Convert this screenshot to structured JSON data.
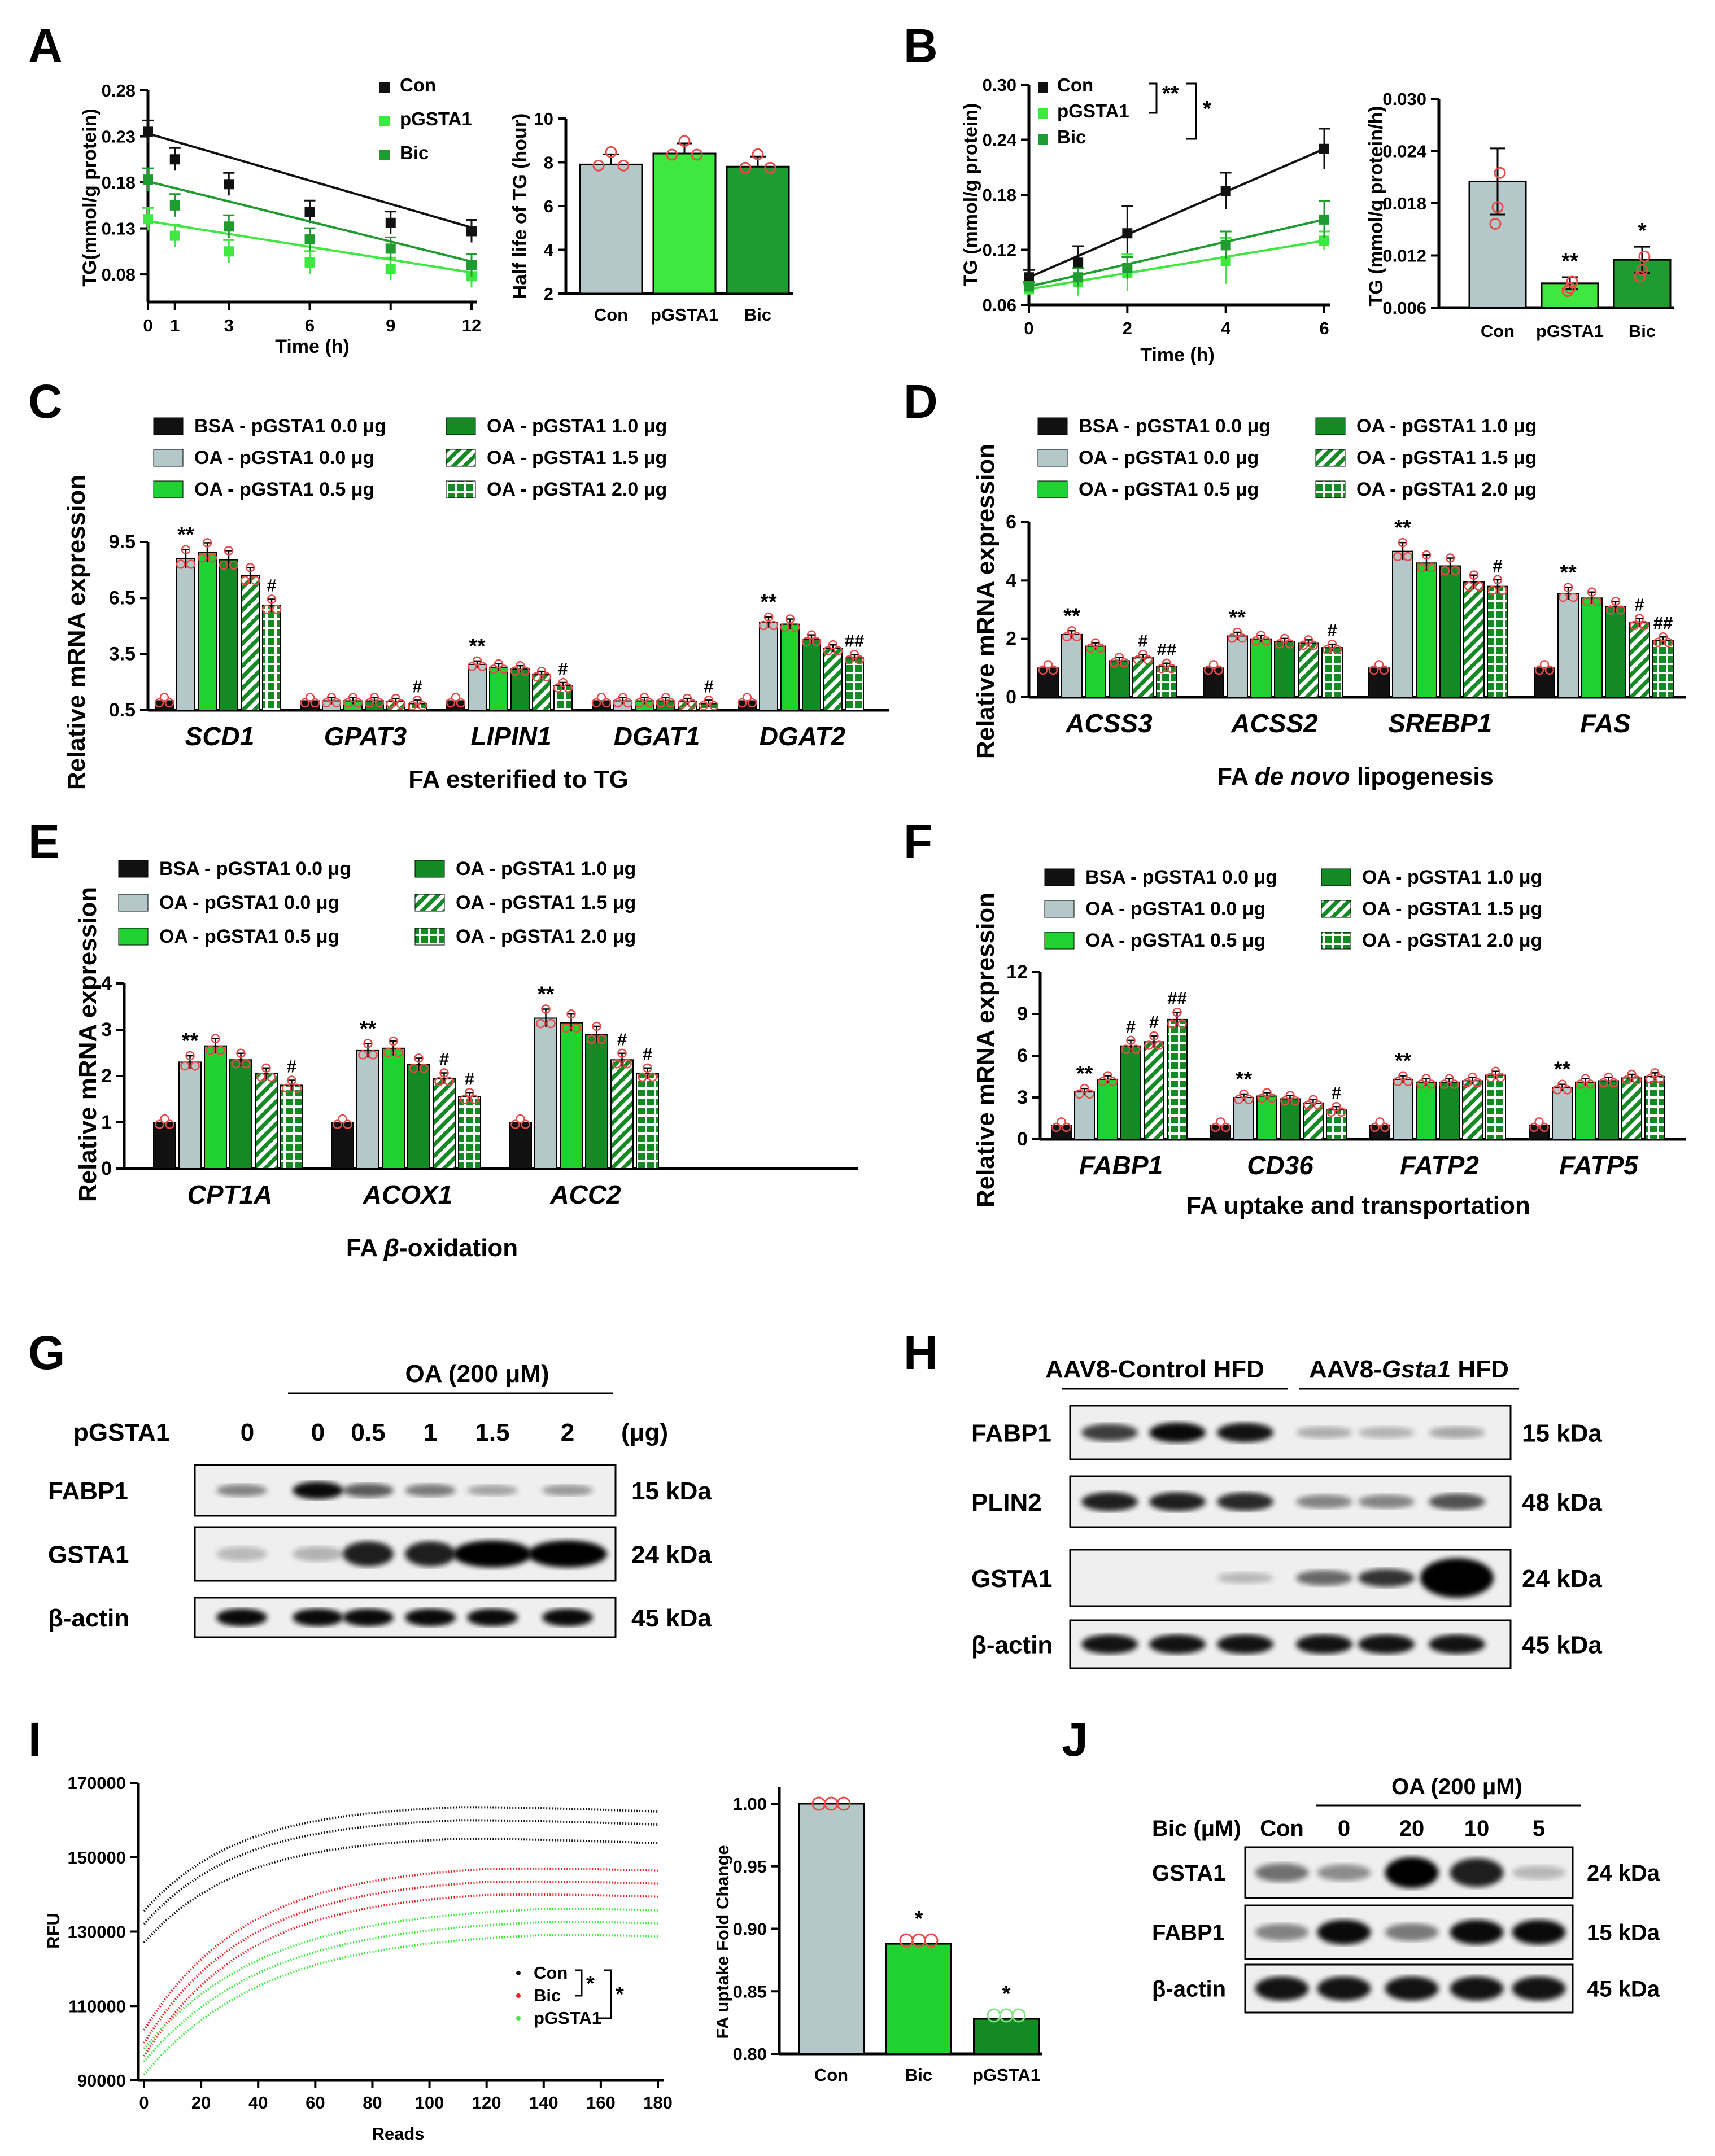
{
  "panels": {
    "A": "A",
    "B": "B",
    "C": "C",
    "D": "D",
    "E": "E",
    "F": "F",
    "G": "G",
    "H": "H",
    "I": "I",
    "J": "J"
  },
  "colors": {
    "con": "#111111",
    "pgsta1": "#3ee83e",
    "bic": "#1f9b2f",
    "oa0": "#b4c7c9",
    "oa05": "#1fd22f",
    "oa1": "#138a23",
    "dot": "#e84a4a",
    "bic_line": "#ee2020"
  },
  "chart_data": [
    {
      "id": "A-line",
      "type": "line",
      "xlabel": "Time (h)",
      "ylabel": "TG(mmol/g protein)",
      "x": [
        0,
        1,
        3,
        6,
        9,
        12
      ],
      "xticks": [
        "0",
        "1",
        "3",
        "6",
        "9",
        "12"
      ],
      "yticks": [
        "0.08",
        "0.13",
        "0.18",
        "0.23",
        "0.28"
      ],
      "ylim": [
        0.05,
        0.28
      ],
      "series": [
        {
          "name": "Con",
          "values": [
            0.235,
            0.205,
            0.178,
            0.148,
            0.136,
            0.127
          ]
        },
        {
          "name": "pGSTA1",
          "values": [
            0.14,
            0.122,
            0.105,
            0.093,
            0.086,
            0.078
          ]
        },
        {
          "name": "Bic",
          "values": [
            0.183,
            0.155,
            0.132,
            0.118,
            0.108,
            0.09
          ]
        }
      ]
    },
    {
      "id": "A-bar",
      "type": "bar",
      "ylabel": "Half life of TG (hour)",
      "categories": [
        "Con",
        "pGSTA1",
        "Bic"
      ],
      "values": [
        7.9,
        8.4,
        7.8
      ],
      "yticks": [
        "2",
        "4",
        "6",
        "8",
        "10"
      ],
      "ylim": [
        2,
        10
      ]
    },
    {
      "id": "B-line",
      "type": "line",
      "xlabel": "Time (h)",
      "ylabel": "TG (mmol/g protein)",
      "x": [
        0,
        1,
        2,
        4,
        6
      ],
      "xticks": [
        "0",
        "2",
        "4",
        "6"
      ],
      "yticks": [
        "0.06",
        "0.12",
        "0.18",
        "0.24",
        "0.30"
      ],
      "ylim": [
        0.06,
        0.3
      ],
      "series": [
        {
          "name": "Con",
          "values": [
            0.09,
            0.106,
            0.138,
            0.184,
            0.23
          ]
        },
        {
          "name": "pGSTA1",
          "values": [
            0.077,
            0.085,
            0.095,
            0.108,
            0.13
          ]
        },
        {
          "name": "Bic",
          "values": [
            0.08,
            0.09,
            0.1,
            0.125,
            0.153
          ]
        }
      ],
      "annotations": [
        "**",
        "*"
      ]
    },
    {
      "id": "B-bar",
      "type": "bar",
      "ylabel": "TG (mmol/g protein/h)",
      "categories": [
        "Con",
        "pGSTA1",
        "Bic"
      ],
      "values": [
        0.0205,
        0.0088,
        0.0115
      ],
      "yticks": [
        "0.006",
        "0.012",
        "0.018",
        "0.024",
        "0.030"
      ],
      "ylim": [
        0.006,
        0.03
      ],
      "significance": [
        "",
        "**",
        "*"
      ]
    },
    {
      "id": "C",
      "type": "bar",
      "title": "FA esterified to TG",
      "ylabel": "Relative mRNA expression",
      "categories": [
        "SCD1",
        "GPAT3",
        "LIPIN1",
        "DGAT1",
        "DGAT2"
      ],
      "yticks": [
        "0.5",
        "3.5",
        "6.5",
        "9.5"
      ],
      "ylim": [
        0.5,
        9.5
      ],
      "series": [
        {
          "name": "BSA - pGSTA1 0.0 μg",
          "values": [
            1,
            1,
            1,
            1,
            1
          ]
        },
        {
          "name": "OA - pGSTA1 0.0 μg",
          "values": [
            8.6,
            1,
            2.95,
            1,
            5.2
          ]
        },
        {
          "name": "OA - pGSTA1 0.5 μg",
          "values": [
            8.95,
            1,
            2.8,
            1,
            5.1
          ]
        },
        {
          "name": "OA - pGSTA1 1.0 μg",
          "values": [
            8.55,
            1,
            2.7,
            1,
            4.3
          ]
        },
        {
          "name": "OA - pGSTA1 1.5 μg",
          "values": [
            7.7,
            0.95,
            2.4,
            0.95,
            3.8
          ]
        },
        {
          "name": "OA - pGSTA1 2.0 μg",
          "values": [
            6.1,
            0.85,
            1.8,
            0.85,
            3.3
          ]
        }
      ],
      "significance": [
        "**",
        "",
        "**",
        "",
        "**"
      ],
      "significance_high": [
        "#",
        "#",
        "#",
        "#",
        "##"
      ]
    },
    {
      "id": "D",
      "type": "bar",
      "title_parts": [
        "FA ",
        "de novo",
        " lipogenesis"
      ],
      "ylabel": "Relative mRNA expression",
      "categories": [
        "ACSS3",
        "ACSS2",
        "SREBP1",
        "FAS"
      ],
      "yticks": [
        "0",
        "2",
        "4",
        "6"
      ],
      "ylim": [
        0,
        6
      ],
      "series": [
        {
          "name": "BSA - pGSTA1 0.0 μg",
          "values": [
            1,
            1,
            1,
            1
          ]
        },
        {
          "name": "OA - pGSTA1 0.0 μg",
          "values": [
            2.15,
            2.1,
            5.0,
            3.55
          ]
        },
        {
          "name": "OA - pGSTA1 0.5 μg",
          "values": [
            1.75,
            2.0,
            4.6,
            3.4
          ]
        },
        {
          "name": "OA - pGSTA1 1.0 μg",
          "values": [
            1.25,
            1.9,
            4.5,
            3.1
          ]
        },
        {
          "name": "OA - pGSTA1 1.5 μg",
          "values": [
            1.35,
            1.85,
            3.95,
            2.55
          ]
        },
        {
          "name": "OA - pGSTA1 2.0 μg",
          "values": [
            1.05,
            1.7,
            3.8,
            1.95
          ]
        }
      ],
      "significance": [
        "**",
        "**",
        "**",
        "**"
      ],
      "significance_15": [
        "#",
        "",
        "",
        "#"
      ],
      "significance_20": [
        "##",
        "#",
        "#",
        "##"
      ]
    },
    {
      "id": "E",
      "type": "bar",
      "title_parts": [
        "FA ",
        "β",
        "-oxidation"
      ],
      "ylabel": "Relative mRNA expression",
      "categories": [
        "CPT1A",
        "ACOX1",
        "ACC2"
      ],
      "yticks": [
        "0",
        "1",
        "2",
        "3",
        "4"
      ],
      "ylim": [
        0,
        4
      ],
      "series": [
        {
          "name": "BSA - pGSTA1 0.0 μg",
          "values": [
            1,
            1,
            1
          ]
        },
        {
          "name": "OA - pGSTA1 0.0 μg",
          "values": [
            2.3,
            2.55,
            3.25
          ]
        },
        {
          "name": "OA - pGSTA1 0.5 μg",
          "values": [
            2.65,
            2.6,
            3.15
          ]
        },
        {
          "name": "OA - pGSTA1 1.0 μg",
          "values": [
            2.35,
            2.25,
            2.9
          ]
        },
        {
          "name": "OA - pGSTA1 1.5 μg",
          "values": [
            2.05,
            1.95,
            2.35
          ]
        },
        {
          "name": "OA - pGSTA1 2.0 μg",
          "values": [
            1.8,
            1.55,
            2.05
          ]
        }
      ],
      "significance": [
        "**",
        "**",
        "**"
      ],
      "significance_15": [
        "",
        "#",
        "#"
      ],
      "significance_20": [
        "#",
        "#",
        "#"
      ]
    },
    {
      "id": "F",
      "type": "bar",
      "title": "FA uptake and transportation",
      "ylabel": "Relative mRNA expression",
      "categories": [
        "FABP1",
        "CD36",
        "FATP2",
        "FATP5"
      ],
      "yticks": [
        "0",
        "3",
        "6",
        "9",
        "12"
      ],
      "ylim": [
        0,
        12
      ],
      "series": [
        {
          "name": "BSA - pGSTA1 0.0 μg",
          "values": [
            1,
            1,
            1,
            1
          ]
        },
        {
          "name": "OA - pGSTA1 0.0 μg",
          "values": [
            3.4,
            3.0,
            4.3,
            3.7
          ]
        },
        {
          "name": "OA - pGSTA1 0.5 μg",
          "values": [
            4.3,
            3.1,
            4.1,
            4.1
          ]
        },
        {
          "name": "OA - pGSTA1 1.0 μg",
          "values": [
            6.7,
            2.9,
            4.1,
            4.2
          ]
        },
        {
          "name": "OA - pGSTA1 1.5 μg",
          "values": [
            7.0,
            2.6,
            4.2,
            4.4
          ]
        },
        {
          "name": "OA - pGSTA1 2.0 μg",
          "values": [
            8.6,
            2.1,
            4.6,
            4.5
          ]
        }
      ],
      "significance": [
        "**",
        "**",
        "**",
        "**"
      ],
      "significance_10": [
        "#",
        "",
        "",
        ""
      ],
      "significance_15": [
        "#",
        "",
        "",
        ""
      ],
      "significance_20": [
        "##",
        "#",
        "",
        ""
      ]
    },
    {
      "id": "I-line",
      "type": "scatter",
      "xlabel": "Reads",
      "ylabel": "RFU",
      "xticks": [
        "0",
        "20",
        "40",
        "60",
        "80",
        "100",
        "120",
        "140",
        "160",
        "180"
      ],
      "yticks": [
        "90000",
        "110000",
        "130000",
        "150000",
        "170000"
      ],
      "xlim": [
        0,
        180
      ],
      "ylim": [
        90000,
        170000
      ],
      "series": [
        {
          "name": "Con",
          "start": 132000,
          "plateau": 161000,
          "peak_x": 110
        },
        {
          "name": "Bic",
          "start": 100000,
          "plateau": 145000,
          "peak_x": 120
        },
        {
          "name": "pGSTA1",
          "start": 95000,
          "plateau": 134000,
          "peak_x": 140
        }
      ],
      "annotations": [
        "*",
        "*"
      ]
    },
    {
      "id": "I-bar",
      "type": "bar",
      "ylabel": "FA uptake Fold Change",
      "categories": [
        "Con",
        "Bic",
        "pGSTA1"
      ],
      "values": [
        1.0,
        0.888,
        0.828
      ],
      "yticks": [
        "0.80",
        "0.85",
        "0.90",
        "0.95",
        "1.00"
      ],
      "ylim": [
        0.8,
        1.0
      ],
      "significance": [
        "",
        "*",
        "*"
      ]
    }
  ],
  "legend_names": {
    "bsa0": "BSA - pGSTA1 0.0 μg",
    "oa0": "OA - pGSTA1 0.0 μg",
    "oa05": "OA - pGSTA1 0.5 μg",
    "oa1": "OA - pGSTA1 1.0 μg",
    "oa15": "OA - pGSTA1 1.5 μg",
    "oa2": "OA - pGSTA1 2.0 μg"
  },
  "blotG": {
    "header": "OA (200 μM)",
    "row_label": "pGSTA1",
    "unit": "(μg)",
    "lanes": [
      "0",
      "0",
      "0.5",
      "1",
      "1.5",
      "2"
    ],
    "proteins": [
      {
        "name": "FABP1",
        "size": "15  kDa",
        "intensities": [
          0.35,
          0.95,
          0.55,
          0.4,
          0.2,
          0.25
        ]
      },
      {
        "name": "GSTA1",
        "size": "24 kDa",
        "intensities": [
          0.08,
          0.12,
          0.85,
          0.85,
          1.0,
          1.0
        ]
      },
      {
        "name": "β-actin",
        "size": "45  kDa",
        "intensities": [
          0.95,
          0.95,
          0.95,
          0.95,
          0.95,
          0.95
        ]
      }
    ]
  },
  "blotH": {
    "group1": "AAV8-Control HFD",
    "group2_prefix": "AAV8-",
    "group2_italic": "Gsta1",
    "group2_suffix": " HFD",
    "proteins": [
      {
        "name": "FABP1",
        "size": "15 kDa",
        "intensities": [
          0.7,
          0.95,
          0.9,
          0.15,
          0.12,
          0.18
        ]
      },
      {
        "name": "PLIN2",
        "size": "48 kDa",
        "intensities": [
          0.85,
          0.85,
          0.8,
          0.35,
          0.35,
          0.6
        ]
      },
      {
        "name": "GSTA1",
        "size": "24 kDa",
        "intensities": [
          0.0,
          0.0,
          0.1,
          0.5,
          0.75,
          1.0
        ]
      },
      {
        "name": "β-actin",
        "size": "45 kDa",
        "intensities": [
          0.9,
          0.9,
          0.9,
          0.9,
          0.9,
          0.9
        ]
      }
    ]
  },
  "blotJ": {
    "header": "OA (200 μM)",
    "row_label": "Bic (μM)",
    "lanes": [
      "Con",
      "0",
      "20",
      "10",
      "5"
    ],
    "proteins": [
      {
        "name": "GSTA1",
        "size": "24 kDa",
        "intensities": [
          0.45,
          0.3,
          1.0,
          0.85,
          0.1
        ]
      },
      {
        "name": "FABP1",
        "size": "15 kDa",
        "intensities": [
          0.35,
          0.95,
          0.4,
          0.95,
          0.95
        ]
      },
      {
        "name": "β-actin",
        "size": "45 kDa",
        "intensities": [
          0.9,
          0.9,
          0.9,
          0.9,
          0.9
        ]
      }
    ]
  }
}
